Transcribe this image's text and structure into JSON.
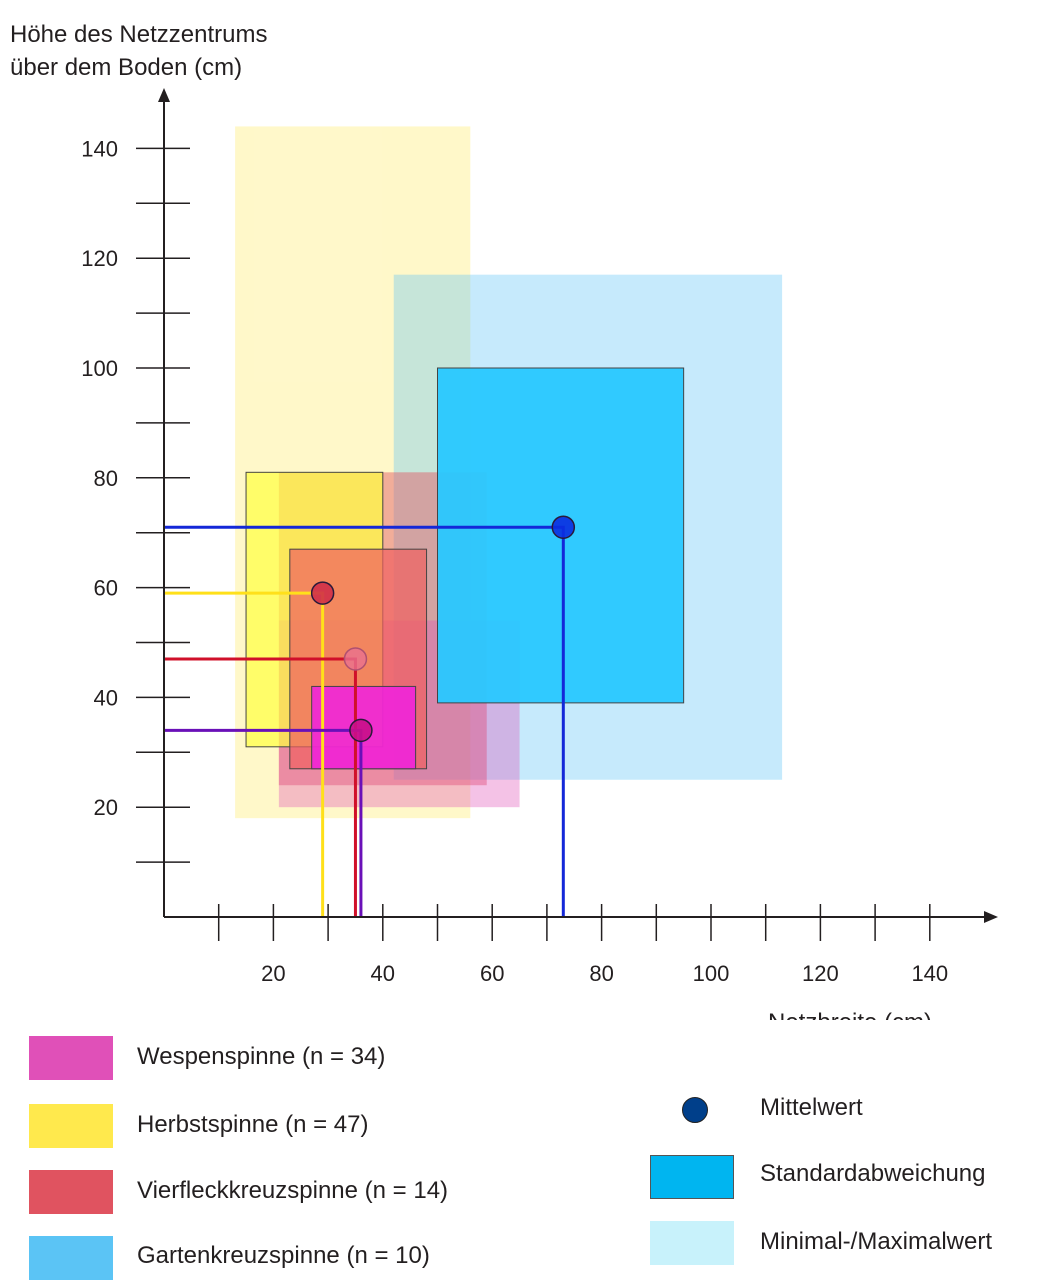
{
  "chart_data": {
    "type": "scatter",
    "ylabel_line1": "Höhe des Netzzentrums",
    "ylabel_line2": "über dem Boden (cm)",
    "xlabel": "Netzbreite (cm)",
    "xlim": [
      0,
      150
    ],
    "ylim": [
      0,
      150
    ],
    "xticks": [
      20,
      40,
      60,
      80,
      100,
      120,
      140
    ],
    "yticks": [
      20,
      40,
      60,
      80,
      100,
      120,
      140
    ],
    "series": [
      {
        "name": "Wespenspinne (n = 34)",
        "color": "#e050b8",
        "mean": [
          36,
          34
        ],
        "sd": {
          "x": [
            27,
            46
          ],
          "y": [
            27,
            42
          ]
        },
        "minmax": {
          "x": [
            21,
            65
          ],
          "y": [
            20,
            54
          ]
        }
      },
      {
        "name": "Herbstspinne (n = 47)",
        "color": "#ffe94d",
        "mean": [
          29,
          59
        ],
        "sd": {
          "x": [
            15,
            40
          ],
          "y": [
            31,
            81
          ]
        },
        "minmax": {
          "x": [
            13,
            56
          ],
          "y": [
            18,
            144
          ]
        }
      },
      {
        "name": "Vierfleckkreuzspinne (n = 14)",
        "color": "#e05360",
        "mean": [
          35,
          47
        ],
        "sd": {
          "x": [
            23,
            48
          ],
          "y": [
            27,
            67
          ]
        },
        "minmax": {
          "x": [
            21,
            59
          ],
          "y": [
            24,
            81
          ]
        }
      },
      {
        "name": "Gartenkreuzspinne (n = 10)",
        "color": "#5bc4f5",
        "mean": [
          73,
          71
        ],
        "sd": {
          "x": [
            50,
            95
          ],
          "y": [
            39,
            100
          ]
        },
        "minmax": {
          "x": [
            42,
            113
          ],
          "y": [
            25,
            117
          ]
        }
      }
    ],
    "key": {
      "mean_label": "Mittelwert",
      "sd_label": "Standardabweichung",
      "minmax_label": "Minimal-/Maximalwert",
      "mean_color": "#003f8a",
      "sd_color": "#00b5f0",
      "minmax_color": "#c8f2fb"
    }
  }
}
